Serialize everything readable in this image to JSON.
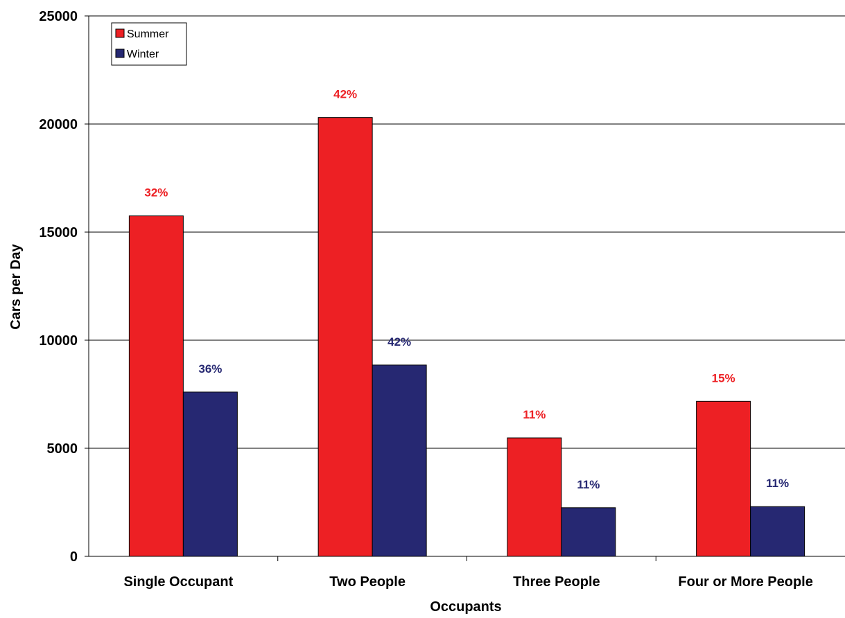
{
  "chart_data": {
    "type": "bar",
    "categories": [
      "Single Occupant",
      "Two People",
      "Three People",
      "Four or More People"
    ],
    "series": [
      {
        "name": "Summer",
        "values": [
          15750,
          20300,
          5480,
          7170
        ],
        "labels": [
          "32%",
          "42%",
          "11%",
          "15%"
        ],
        "color": "#ED2024"
      },
      {
        "name": "Winter",
        "values": [
          7600,
          8850,
          2250,
          2300
        ],
        "labels": [
          "36%",
          "42%",
          "11%",
          "11%"
        ],
        "color": "#262872"
      }
    ],
    "xlabel": "Occupants",
    "ylabel": "Cars per Day",
    "ylim": [
      0,
      25000
    ],
    "yticks": [
      "0",
      "5000",
      "10000",
      "15000",
      "20000",
      "25000"
    ],
    "grid": true,
    "legend_position": "top-left"
  }
}
